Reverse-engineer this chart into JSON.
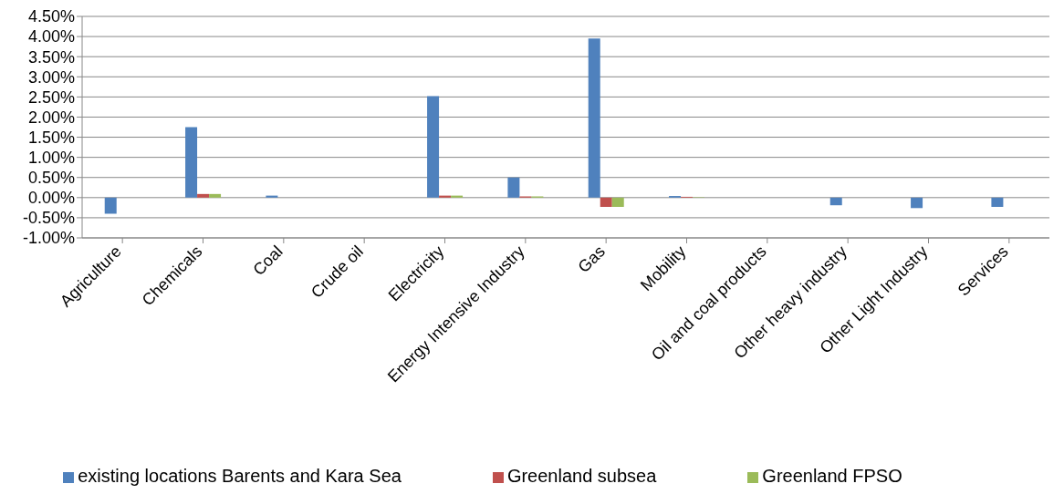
{
  "chart_data": {
    "type": "bar",
    "categories": [
      "Agriculture",
      "Chemicals",
      "Coal",
      "Crude oil",
      "Electricity",
      "Energy Intensive Industry",
      "Gas",
      "Mobility",
      "Oil and coal products",
      "Other heavy industry",
      "Other Light Industry",
      "Services"
    ],
    "series": [
      {
        "name": "existing locations Barents and Kara Sea",
        "color": "#4f81bd",
        "values": [
          -0.4,
          1.75,
          0.05,
          0,
          2.52,
          0.5,
          3.95,
          0.04,
          0,
          -0.19,
          -0.26,
          -0.23
        ]
      },
      {
        "name": "Greenland subsea",
        "color": "#c0504d",
        "values": [
          0,
          0.09,
          0,
          0,
          0.05,
          0.03,
          -0.23,
          0.02,
          0,
          0,
          0,
          0
        ]
      },
      {
        "name": "Greenland FPSO",
        "color": "#9bbb59",
        "values": [
          0,
          0.09,
          0,
          0,
          0.05,
          0.03,
          -0.23,
          0.01,
          0,
          0,
          0,
          0
        ]
      }
    ],
    "ylim": [
      -1,
      4.5
    ],
    "yticks": [
      {
        "value": -1,
        "label": "-1.00%"
      },
      {
        "value": -0.5,
        "label": "-0.50%"
      },
      {
        "value": 0,
        "label": "0.00%"
      },
      {
        "value": 0.5,
        "label": "0.50%"
      },
      {
        "value": 1,
        "label": "1.00%"
      },
      {
        "value": 1.5,
        "label": "1.50%"
      },
      {
        "value": 2,
        "label": "2.00%"
      },
      {
        "value": 2.5,
        "label": "2.50%"
      },
      {
        "value": 3,
        "label": "3.00%"
      },
      {
        "value": 3.5,
        "label": "3.50%"
      },
      {
        "value": 4,
        "label": "4.00%"
      },
      {
        "value": 4.5,
        "label": "4.50%"
      }
    ],
    "grid": "y",
    "legend": "bottom"
  }
}
